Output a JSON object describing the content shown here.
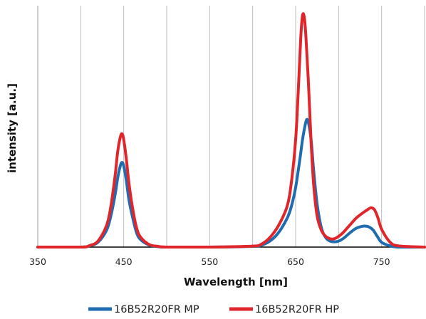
{
  "chart_data": {
    "type": "line",
    "title": "",
    "xlabel": "Wavelength [nm]",
    "ylabel": "intensity [a.u.]",
    "xlim": [
      350,
      800
    ],
    "ylim": [
      0,
      1.0
    ],
    "x_ticks": [
      350,
      450,
      550,
      650,
      750
    ],
    "x_gridlines": [
      350,
      400,
      450,
      500,
      550,
      600,
      650,
      700,
      750,
      800
    ],
    "grid": "vertical",
    "legend": "bottom",
    "y_tick_labels": "none",
    "series": [
      {
        "name": "16B52R20FR MP",
        "color": "#1f6cb0",
        "x": [
          350,
          400,
          410,
          420,
          430,
          435,
          440,
          443,
          446,
          448,
          450,
          453,
          456,
          460,
          465,
          470,
          480,
          490,
          500,
          550,
          600,
          610,
          620,
          630,
          640,
          645,
          650,
          655,
          658,
          661,
          663,
          665,
          668,
          671,
          675,
          680,
          685,
          690,
          695,
          700,
          705,
          710,
          715,
          720,
          725,
          730,
          735,
          740,
          745,
          750,
          760,
          770,
          800
        ],
        "y": [
          0,
          0,
          0.005,
          0.02,
          0.07,
          0.13,
          0.22,
          0.29,
          0.34,
          0.355,
          0.34,
          0.28,
          0.2,
          0.13,
          0.06,
          0.03,
          0.008,
          0.002,
          0,
          0,
          0.003,
          0.008,
          0.025,
          0.06,
          0.12,
          0.17,
          0.25,
          0.37,
          0.45,
          0.51,
          0.535,
          0.52,
          0.45,
          0.32,
          0.18,
          0.08,
          0.04,
          0.025,
          0.022,
          0.025,
          0.035,
          0.05,
          0.065,
          0.078,
          0.085,
          0.088,
          0.085,
          0.072,
          0.045,
          0.02,
          0.005,
          0,
          0
        ]
      },
      {
        "name": "16B52R20FR HP",
        "color": "#e0262b",
        "x": [
          350,
          400,
          410,
          420,
          430,
          435,
          440,
          443,
          446,
          448,
          450,
          453,
          456,
          460,
          465,
          470,
          480,
          490,
          500,
          550,
          600,
          610,
          620,
          630,
          640,
          645,
          650,
          653,
          656,
          658,
          660,
          662,
          665,
          668,
          671,
          675,
          680,
          685,
          690,
          695,
          700,
          705,
          710,
          715,
          720,
          725,
          730,
          735,
          738,
          742,
          746,
          750,
          760,
          770,
          800
        ],
        "y": [
          0,
          0,
          0.006,
          0.025,
          0.09,
          0.17,
          0.3,
          0.4,
          0.46,
          0.475,
          0.45,
          0.37,
          0.27,
          0.17,
          0.08,
          0.04,
          0.01,
          0.003,
          0,
          0,
          0.004,
          0.012,
          0.04,
          0.09,
          0.17,
          0.27,
          0.45,
          0.65,
          0.88,
          0.97,
          0.965,
          0.88,
          0.68,
          0.44,
          0.26,
          0.13,
          0.07,
          0.045,
          0.035,
          0.035,
          0.045,
          0.06,
          0.08,
          0.1,
          0.12,
          0.135,
          0.148,
          0.16,
          0.165,
          0.155,
          0.12,
          0.075,
          0.02,
          0.005,
          0
        ]
      }
    ]
  }
}
